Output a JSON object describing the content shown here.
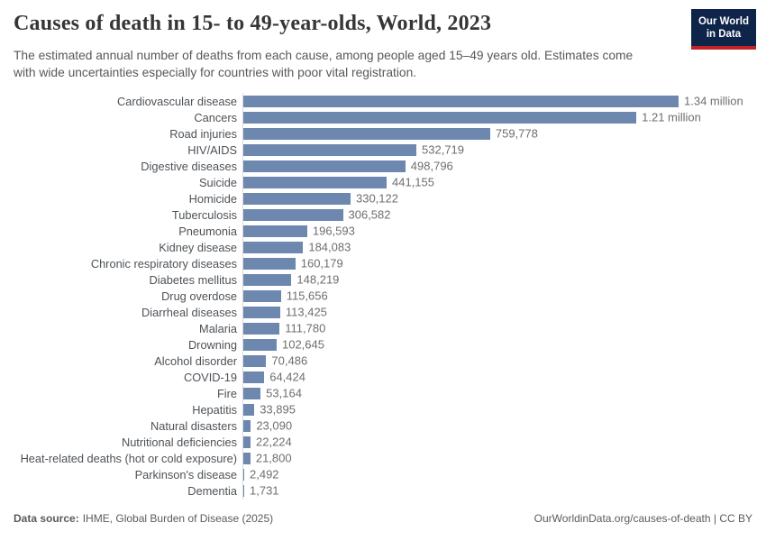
{
  "header": {
    "title": "Causes of death in 15- to 49-year-olds, World, 2023",
    "subtitle_line1": "The estimated annual number of deaths from each cause, among people aged 15–49 years old. Estimates come",
    "subtitle_line2": "with wide uncertainties especially for countries with poor vital registration.",
    "logo": {
      "line1": "Our World",
      "line2": "in Data"
    }
  },
  "chart_data": {
    "type": "bar",
    "orientation": "horizontal",
    "title": "Causes of death in 15- to 49-year-olds, World, 2023",
    "xlabel": "",
    "ylabel": "",
    "xlim": [
      0,
      1340000
    ],
    "grid": false,
    "legend": false,
    "bar_color": "#6d87af",
    "categories": [
      "Cardiovascular disease",
      "Cancers",
      "Road injuries",
      "HIV/AIDS",
      "Digestive diseases",
      "Suicide",
      "Homicide",
      "Tuberculosis",
      "Pneumonia",
      "Kidney disease",
      "Chronic respiratory diseases",
      "Diabetes mellitus",
      "Drug overdose",
      "Diarrheal diseases",
      "Malaria",
      "Drowning",
      "Alcohol disorder",
      "COVID-19",
      "Fire",
      "Hepatitis",
      "Natural disasters",
      "Nutritional deficiencies",
      "Heat-related deaths (hot or cold exposure)",
      "Parkinson's disease",
      "Dementia"
    ],
    "values": [
      1340000,
      1210000,
      759778,
      532719,
      498796,
      441155,
      330122,
      306582,
      196593,
      184083,
      160179,
      148219,
      115656,
      113425,
      111780,
      102645,
      70486,
      64424,
      53164,
      33895,
      23090,
      22224,
      21800,
      2492,
      1731
    ],
    "value_labels": [
      "1.34 million",
      "1.21 million",
      "759,778",
      "532,719",
      "498,796",
      "441,155",
      "330,122",
      "306,582",
      "196,593",
      "184,083",
      "160,179",
      "148,219",
      "115,656",
      "113,425",
      "111,780",
      "102,645",
      "70,486",
      "64,424",
      "53,164",
      "33,895",
      "23,090",
      "22,224",
      "21,800",
      "2,492",
      "1,731"
    ]
  },
  "footer": {
    "datasource_label": "Data source:",
    "datasource_text": "IHME, Global Burden of Disease (2025)",
    "attribution": "OurWorldinData.org/causes-of-death | CC BY"
  }
}
